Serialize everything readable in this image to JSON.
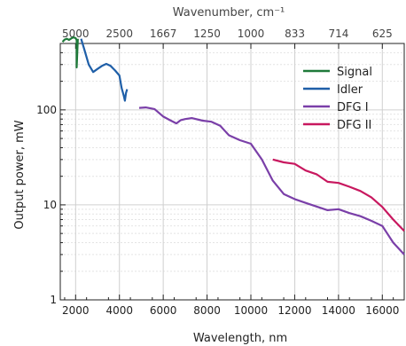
{
  "chart_data": {
    "type": "line",
    "xlabel": "Wavelength, nm",
    "ylabel": "Output power, mW",
    "top_xlabel": "Wavenumber, cm⁻¹",
    "xlim": [
      1300,
      17000
    ],
    "ylim": [
      1,
      500
    ],
    "yscale": "log",
    "x_ticks": [
      2000,
      4000,
      6000,
      8000,
      10000,
      12000,
      14000,
      16000
    ],
    "x_tick_labels": [
      "2000",
      "4000",
      "6000",
      "8000",
      "10000",
      "12000",
      "14000",
      "16000"
    ],
    "y_ticks": [
      1,
      10,
      100
    ],
    "y_tick_labels": [
      "1",
      "10",
      "100"
    ],
    "top_ticks_wavenumber": [
      5000,
      2500,
      1667,
      1250,
      1000,
      833,
      714,
      625
    ],
    "top_tick_labels": [
      "5000",
      "2500",
      "1667",
      "1250",
      "1000",
      "833",
      "714",
      "625"
    ],
    "grid": true,
    "legend_position": "top-right",
    "colors": {
      "signal": "#1f7a3a",
      "idler": "#1f5fa8",
      "dfg1": "#7a3fa8",
      "dfg2": "#c8185f"
    },
    "series": [
      {
        "name": "Signal",
        "color": "#1f7a3a",
        "x": [
          1400,
          1500,
          1600,
          1700,
          1800,
          1900,
          2000,
          2050,
          2050,
          2100
        ],
        "y": [
          520,
          550,
          560,
          545,
          565,
          580,
          570,
          540,
          280,
          560
        ]
      },
      {
        "name": "Idler",
        "color": "#1f5fa8",
        "x": [
          2250,
          2400,
          2600,
          2800,
          3000,
          3200,
          3400,
          3600,
          3800,
          4000,
          4100,
          4200,
          4250,
          4300,
          4350
        ],
        "y": [
          560,
          430,
          300,
          250,
          270,
          290,
          305,
          290,
          260,
          230,
          170,
          140,
          125,
          150,
          165
        ]
      },
      {
        "name": "DFG I",
        "color": "#7a3fa8",
        "x": [
          4900,
          5200,
          5600,
          6000,
          6300,
          6600,
          6800,
          7000,
          7300,
          7800,
          8200,
          8600,
          9000,
          9500,
          10000,
          10500,
          11000,
          11500,
          12000,
          12500,
          13000,
          13500,
          14000,
          14500,
          15000,
          15500,
          16000,
          16500,
          17000
        ],
        "y": [
          105,
          106,
          102,
          85,
          78,
          72,
          78,
          80,
          82,
          77,
          75,
          68,
          54,
          48,
          44,
          30,
          18,
          13,
          11.5,
          10.5,
          9.6,
          8.8,
          9.0,
          8.2,
          7.6,
          6.8,
          6.0,
          4.0,
          3.0
        ]
      },
      {
        "name": "DFG II",
        "color": "#c8185f",
        "x": [
          11000,
          11500,
          12000,
          12500,
          13000,
          13500,
          14000,
          14500,
          15000,
          15500,
          16000,
          16500,
          17000
        ],
        "y": [
          30,
          28,
          27,
          23,
          21,
          17.5,
          17,
          15.5,
          14,
          12,
          9.5,
          7.0,
          5.3
        ]
      }
    ]
  }
}
